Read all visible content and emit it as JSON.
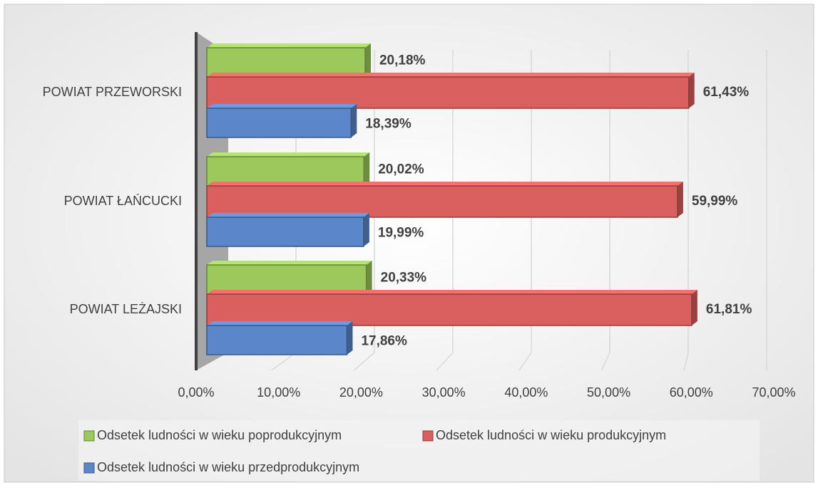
{
  "chart_data": {
    "type": "bar",
    "orientation": "horizontal",
    "categories": [
      "POWIAT PRZEWORSKI",
      "POWIAT ŁAŃCUCKI",
      "POWIAT LEŻAJSKI"
    ],
    "series": [
      {
        "name": "Odsetek ludności w wieku poprodukcyjnym",
        "color": "#9bc95b",
        "values": [
          20.18,
          20.02,
          20.33
        ],
        "value_labels": [
          "20,18%",
          "20,02%",
          "20,33%"
        ]
      },
      {
        "name": "Odsetek ludności w wieku produkcyjnym",
        "color": "#d9605e",
        "values": [
          61.43,
          59.99,
          61.81
        ],
        "value_labels": [
          "61,43%",
          "59,99%",
          "61,81%"
        ]
      },
      {
        "name": "Odsetek ludności w wieku przedprodukcyjnym",
        "color": "#5b87c8",
        "values": [
          18.39,
          19.99,
          17.86
        ],
        "value_labels": [
          "18,39%",
          "19,99%",
          "17,86%"
        ]
      }
    ],
    "xlim": [
      0,
      70
    ],
    "xticks": [
      {
        "value": 0,
        "label": "0,00%"
      },
      {
        "value": 10,
        "label": "10,00%"
      },
      {
        "value": 20,
        "label": "20,00%"
      },
      {
        "value": 30,
        "label": "30,00%"
      },
      {
        "value": 40,
        "label": "40,00%"
      },
      {
        "value": 50,
        "label": "50,00%"
      },
      {
        "value": 60,
        "label": "60,00%"
      },
      {
        "value": 70,
        "label": "70,00%"
      }
    ],
    "grid": true
  }
}
